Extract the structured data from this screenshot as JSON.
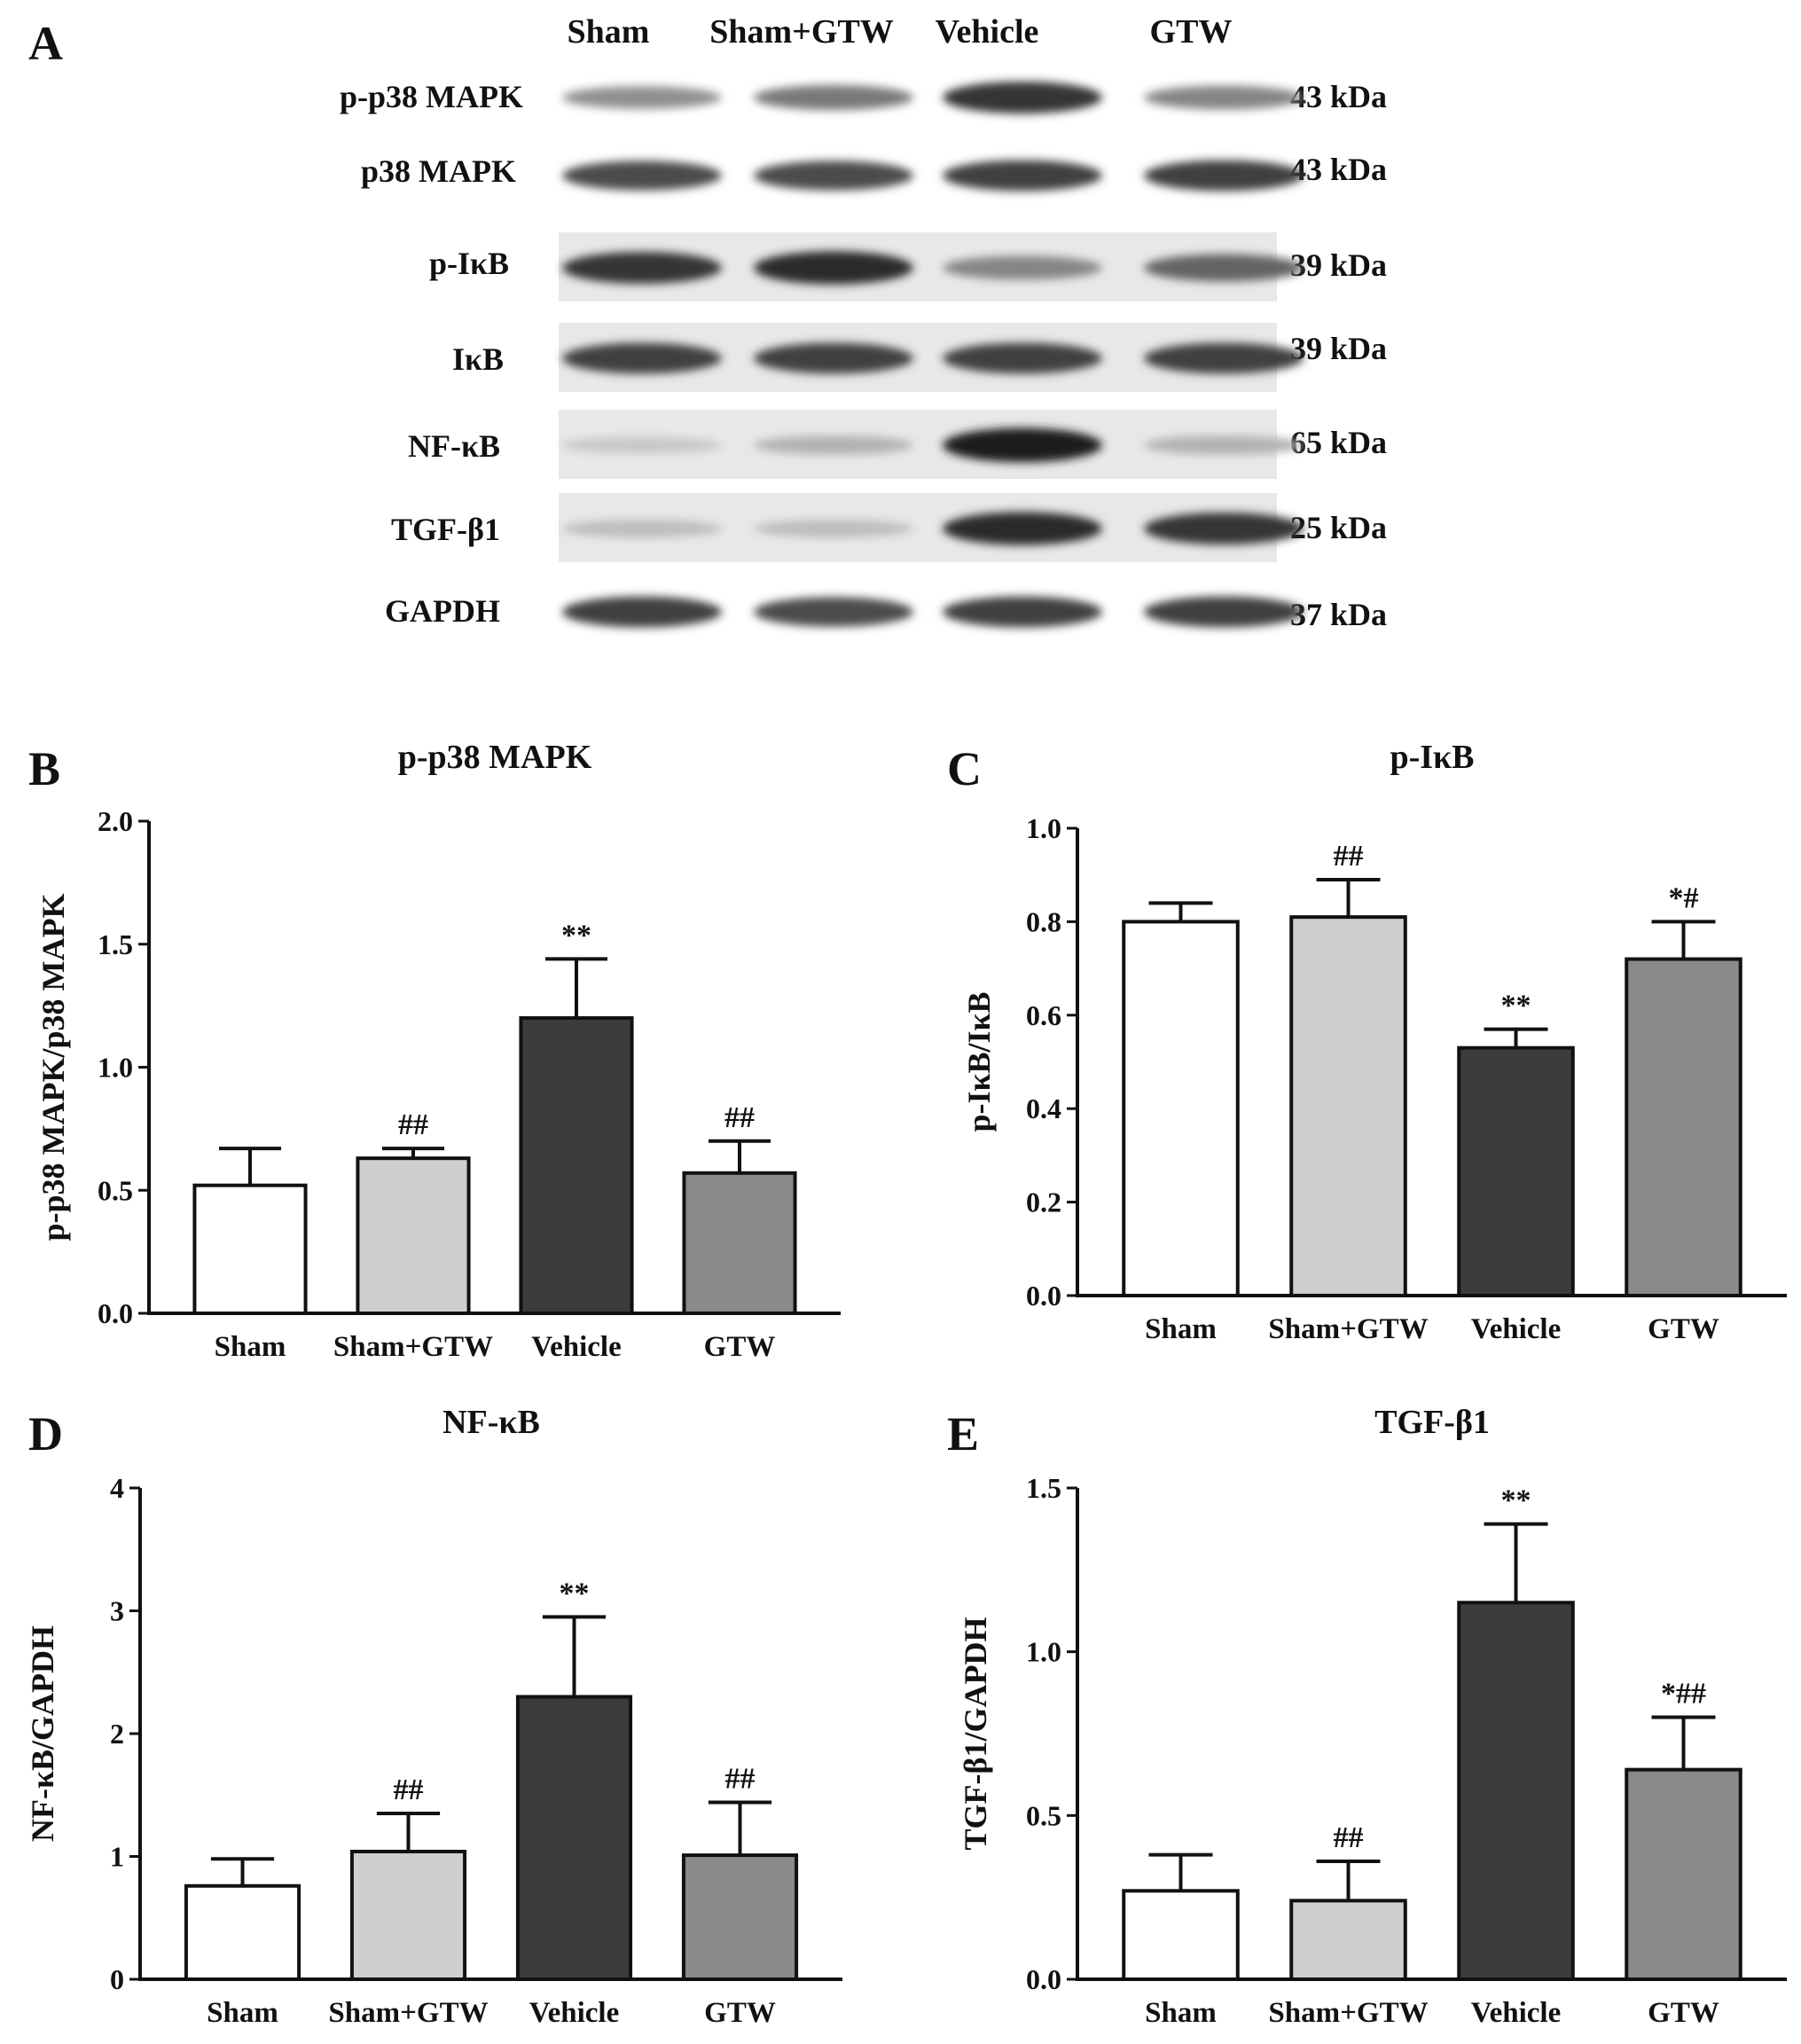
{
  "figure": {
    "panel_letters": [
      "A",
      "B",
      "C",
      "D",
      "E"
    ],
    "blot": {
      "lanes": [
        "Sham",
        "Sham+GTW",
        "Vehicle",
        "GTW"
      ],
      "rows": [
        {
          "protein": "p-p38 MAPK",
          "kda": "43 kDa",
          "intensity": [
            0.45,
            0.55,
            0.85,
            0.5
          ]
        },
        {
          "protein": "p38 MAPK",
          "kda": "43 kDa",
          "intensity": [
            0.75,
            0.75,
            0.8,
            0.8
          ]
        },
        {
          "protein": "p-IκB",
          "kda": "39 kDa",
          "intensity": [
            0.85,
            0.9,
            0.5,
            0.65
          ]
        },
        {
          "protein": "IκB",
          "kda": "39 kDa",
          "intensity": [
            0.8,
            0.8,
            0.8,
            0.8
          ]
        },
        {
          "protein": "NF-κB",
          "kda": "65 kDa",
          "intensity": [
            0.2,
            0.3,
            0.95,
            0.3
          ]
        },
        {
          "protein": "TGF-β1",
          "kda": "25 kDa",
          "intensity": [
            0.25,
            0.25,
            0.9,
            0.85
          ]
        },
        {
          "protein": "GAPDH",
          "kda": "37 kDa",
          "intensity": [
            0.8,
            0.75,
            0.8,
            0.8
          ]
        }
      ]
    }
  },
  "colors": {
    "Sham": "#ffffff",
    "Sham+GTW": "#cfcfcf",
    "Vehicle": "#3c3c3c",
    "GTW": "#8a8a8a"
  },
  "chart_data": [
    {
      "panel": "B",
      "type": "bar",
      "title": "p-p38 MAPK",
      "ylabel": "p-p38 MAPK/p38 MAPK",
      "categories": [
        "Sham",
        "Sham+GTW",
        "Vehicle",
        "GTW"
      ],
      "values": [
        0.52,
        0.63,
        1.2,
        0.57
      ],
      "errors": [
        0.15,
        0.04,
        0.24,
        0.13
      ],
      "annotations": [
        "",
        "##",
        "**",
        "##"
      ],
      "ylim": [
        0,
        2.0
      ],
      "yticks": [
        "0.0",
        "0.5",
        "1.0",
        "1.5",
        "2.0"
      ]
    },
    {
      "panel": "C",
      "type": "bar",
      "title": "p-IκB",
      "ylabel": "p-IκB/IκB",
      "categories": [
        "Sham",
        "Sham+GTW",
        "Vehicle",
        "GTW"
      ],
      "values": [
        0.8,
        0.81,
        0.53,
        0.72
      ],
      "errors": [
        0.04,
        0.08,
        0.04,
        0.08
      ],
      "annotations": [
        "",
        "##",
        "**",
        "*#"
      ],
      "ylim": [
        0,
        1.0
      ],
      "yticks": [
        "0.0",
        "0.2",
        "0.4",
        "0.6",
        "0.8",
        "1.0"
      ]
    },
    {
      "panel": "D",
      "type": "bar",
      "title": "NF-κB",
      "ylabel": "NF-κB/GAPDH",
      "categories": [
        "Sham",
        "Sham+GTW",
        "Vehicle",
        "GTW"
      ],
      "values": [
        0.76,
        1.04,
        2.3,
        1.01
      ],
      "errors": [
        0.22,
        0.31,
        0.65,
        0.43
      ],
      "annotations": [
        "",
        "##",
        "**",
        "##"
      ],
      "ylim": [
        0,
        4
      ],
      "yticks": [
        "0",
        "1",
        "2",
        "3",
        "4"
      ]
    },
    {
      "panel": "E",
      "type": "bar",
      "title": "TGF-β1",
      "ylabel": "TGF-β1/GAPDH",
      "categories": [
        "Sham",
        "Sham+GTW",
        "Vehicle",
        "GTW"
      ],
      "values": [
        0.27,
        0.24,
        1.15,
        0.64
      ],
      "errors": [
        0.11,
        0.12,
        0.24,
        0.16
      ],
      "annotations": [
        "",
        "##",
        "**",
        "*##"
      ],
      "ylim": [
        0,
        1.5
      ],
      "yticks": [
        "0.0",
        "0.5",
        "1.0",
        "1.5"
      ]
    }
  ]
}
